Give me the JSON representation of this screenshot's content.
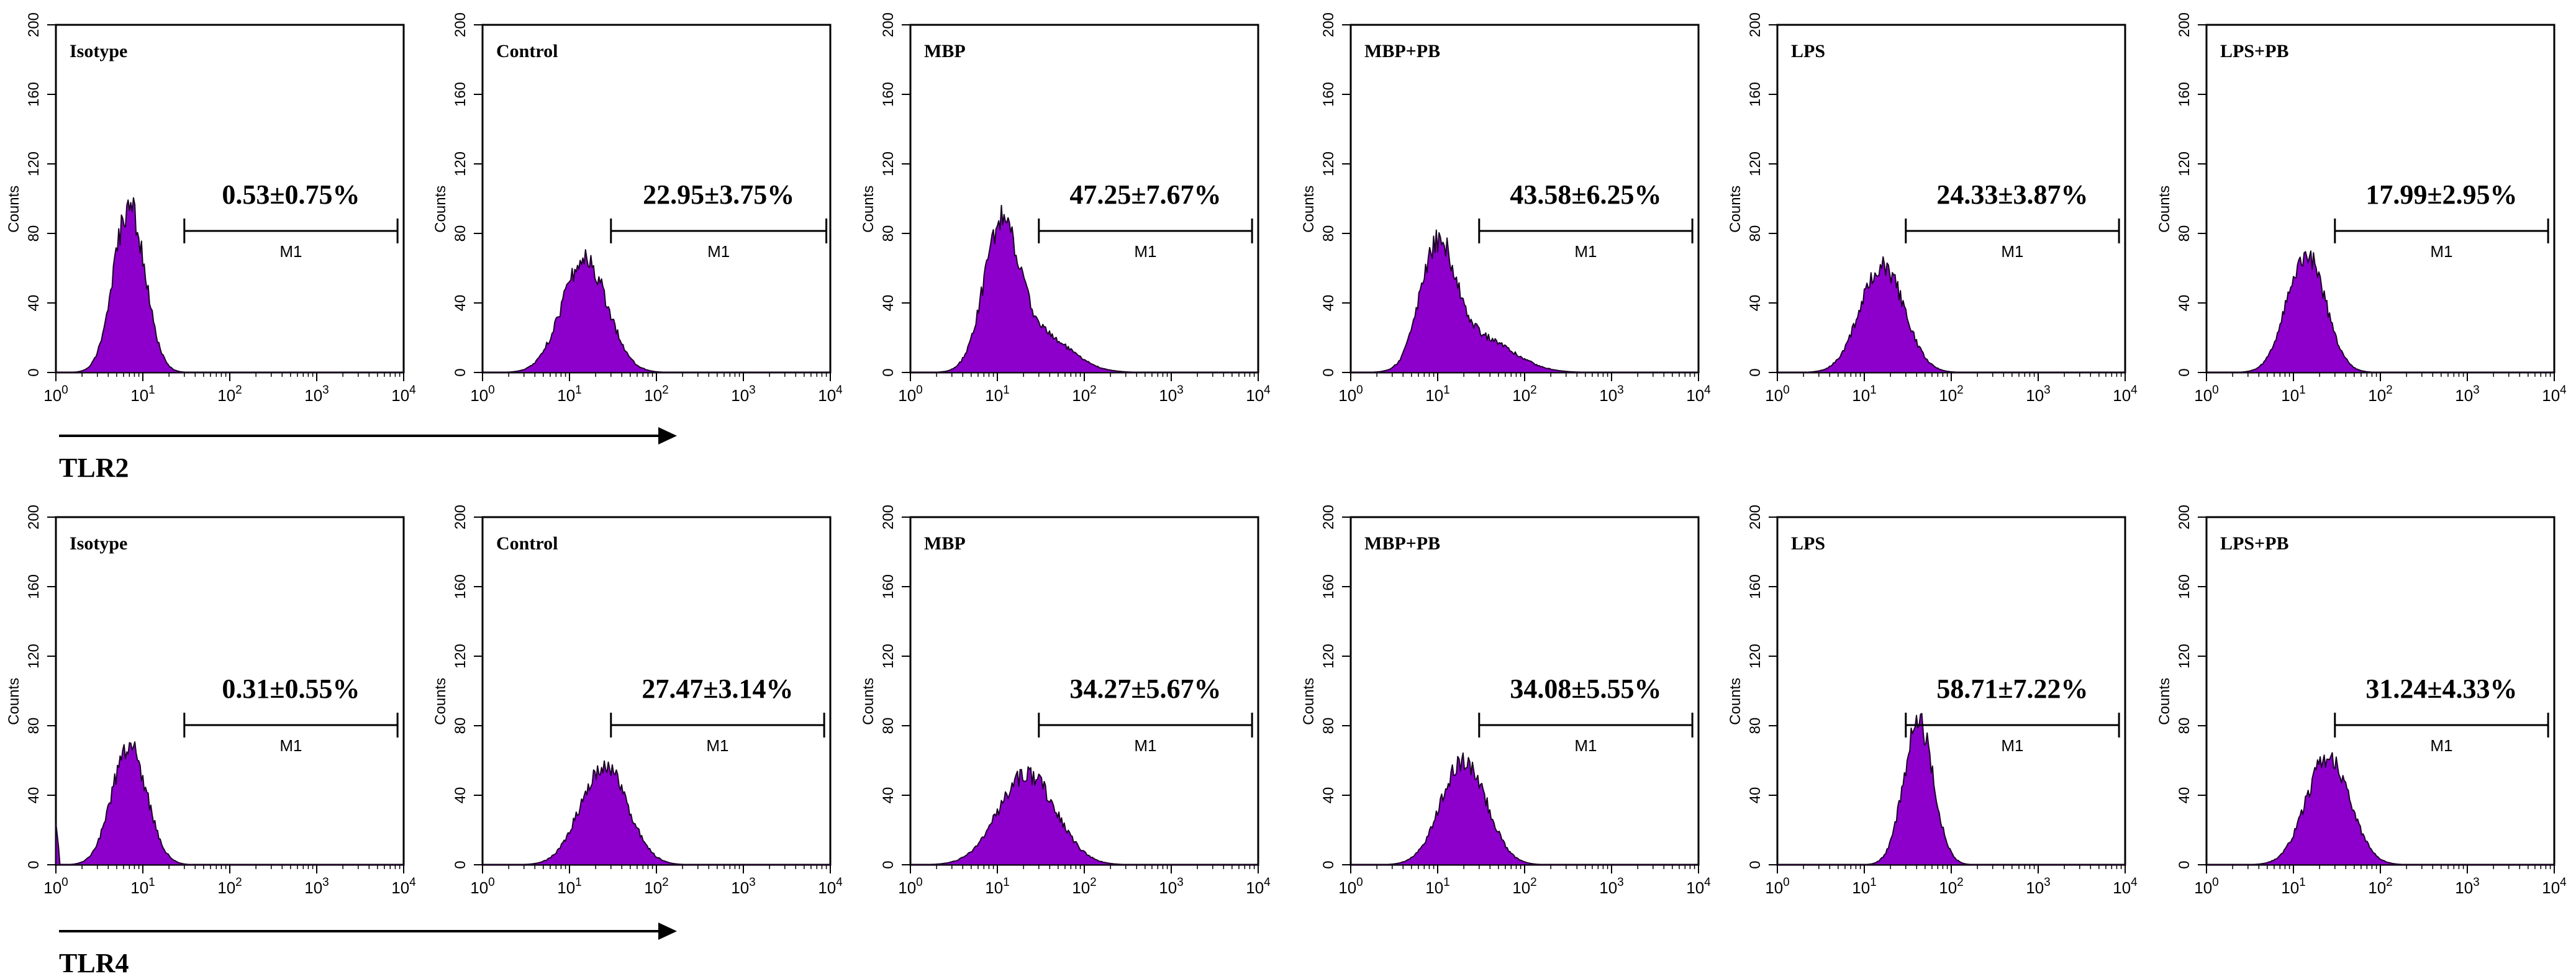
{
  "chart_data": {
    "type": "histogram",
    "y_axis_label": "Counts",
    "y_ticks": [
      "0",
      "40",
      "80",
      "120",
      "160",
      "200"
    ],
    "ylim": [
      0,
      200
    ],
    "xlim": [
      1,
      10000
    ],
    "x_ticks": [
      {
        "base": "10",
        "exp": "0"
      },
      {
        "base": "10",
        "exp": "1"
      },
      {
        "base": "10",
        "exp": "2"
      },
      {
        "base": "10",
        "exp": "3"
      },
      {
        "base": "10",
        "exp": "4"
      }
    ],
    "marker_label": "M1",
    "colors": {
      "fill": "#8d00cc",
      "outline": "#1a0024",
      "axis": "#000000",
      "arrow": "#000000"
    },
    "rows": [
      {
        "receptor": "TLR2",
        "panels": [
          {
            "label": "Isotype",
            "value_text": "0.53±0.75%",
            "marker_range": [
              30,
              8500
            ],
            "peaks": [
              {
                "x": 7,
                "h": 95,
                "w": 0.18
              }
            ],
            "sharp_left": false
          },
          {
            "label": "Control",
            "value_text": "22.95±3.75%",
            "marker_range": [
              30,
              9000
            ],
            "peaks": [
              {
                "x": 15,
                "h": 65,
                "w": 0.26
              }
            ],
            "sharp_left": false
          },
          {
            "label": "MBP",
            "value_text": "47.25±7.67%",
            "marker_range": [
              30,
              8500
            ],
            "peaks": [
              {
                "x": 11,
                "h": 78,
                "w": 0.2
              },
              {
                "x": 30,
                "h": 22,
                "w": 0.35
              }
            ],
            "sharp_left": false
          },
          {
            "label": "MBP+PB",
            "value_text": "43.58±6.25%",
            "marker_range": [
              30,
              8500
            ],
            "peaks": [
              {
                "x": 10,
                "h": 68,
                "w": 0.2
              },
              {
                "x": 30,
                "h": 20,
                "w": 0.38
              }
            ],
            "sharp_left": false
          },
          {
            "label": "LPS",
            "value_text": "24.33±3.87%",
            "marker_range": [
              30,
              8500
            ],
            "peaks": [
              {
                "x": 16,
                "h": 62,
                "w": 0.25
              }
            ],
            "sharp_left": false
          },
          {
            "label": "LPS+PB",
            "value_text": "17.99±2.95%",
            "marker_range": [
              30,
              8500
            ],
            "peaks": [
              {
                "x": 14,
                "h": 68,
                "w": 0.22
              }
            ],
            "sharp_left": false
          }
        ]
      },
      {
        "receptor": "TLR4",
        "panels": [
          {
            "label": "Isotype",
            "value_text": "0.31±0.55%",
            "marker_range": [
              30,
              8500
            ],
            "peaks": [
              {
                "x": 7,
                "h": 68,
                "w": 0.2
              }
            ],
            "sharp_left": true
          },
          {
            "label": "Control",
            "value_text": "27.47±3.14%",
            "marker_range": [
              30,
              8500
            ],
            "peaks": [
              {
                "x": 25,
                "h": 57,
                "w": 0.27
              }
            ],
            "sharp_left": false
          },
          {
            "label": "MBP",
            "value_text": "34.27±5.67%",
            "marker_range": [
              30,
              8500
            ],
            "peaks": [
              {
                "x": 22,
                "h": 52,
                "w": 0.33
              }
            ],
            "sharp_left": false
          },
          {
            "label": "MBP+PB",
            "value_text": "34.08±5.55%",
            "marker_range": [
              30,
              8500
            ],
            "peaks": [
              {
                "x": 20,
                "h": 60,
                "w": 0.26
              }
            ],
            "sharp_left": false
          },
          {
            "label": "LPS",
            "value_text": "58.71±7.22%",
            "marker_range": [
              30,
              8500
            ],
            "peaks": [
              {
                "x": 42,
                "h": 82,
                "w": 0.17
              }
            ],
            "sharp_left": false
          },
          {
            "label": "LPS+PB",
            "value_text": "31.24±4.33%",
            "marker_range": [
              30,
              8500
            ],
            "peaks": [
              {
                "x": 25,
                "h": 62,
                "w": 0.25
              }
            ],
            "sharp_left": false
          }
        ]
      }
    ]
  }
}
